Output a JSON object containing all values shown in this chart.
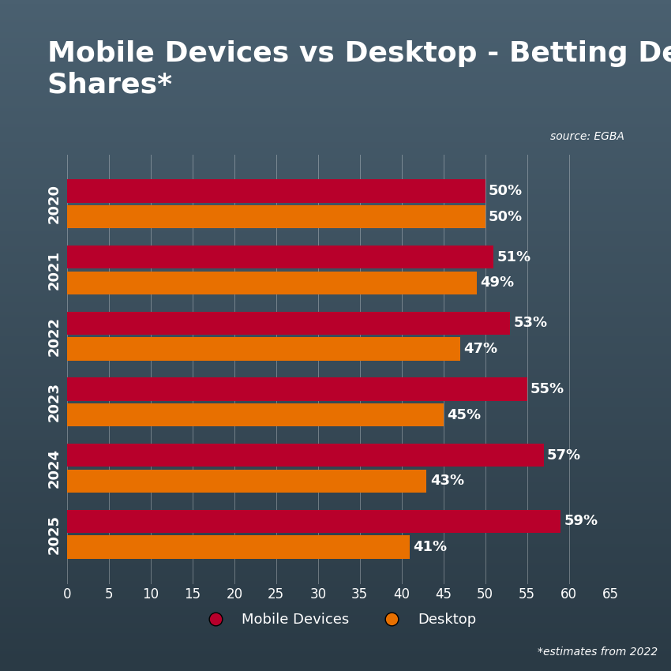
{
  "title": "Mobile Devices vs Desktop - Betting Device\nShares*",
  "source": "source: EGBA",
  "footnote": "*estimates from 2022",
  "years": [
    "2020",
    "2021",
    "2022",
    "2023",
    "2024",
    "2025"
  ],
  "mobile_values": [
    50,
    51,
    53,
    55,
    57,
    59
  ],
  "desktop_values": [
    50,
    49,
    47,
    45,
    43,
    41
  ],
  "mobile_color": "#B8002B",
  "desktop_color": "#E87000",
  "background_color_top": "#4a6070",
  "background_color_bottom": "#2a3a45",
  "bar_height": 0.35,
  "xlim": [
    0,
    65
  ],
  "xticks": [
    0,
    5,
    10,
    15,
    20,
    25,
    30,
    35,
    40,
    45,
    50,
    55,
    60,
    65
  ],
  "title_fontsize": 26,
  "label_fontsize": 13,
  "tick_fontsize": 12,
  "year_fontsize": 13,
  "text_color": "#ffffff",
  "grid_color": "#ffffff",
  "legend_mobile": "Mobile Devices",
  "legend_desktop": "Desktop"
}
